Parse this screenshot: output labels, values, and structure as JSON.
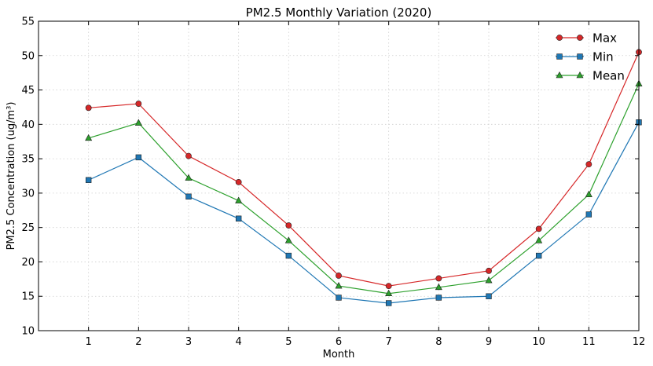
{
  "chart_data": {
    "type": "line",
    "title": "PM2.5 Monthly Variation (2020)",
    "xlabel": "Month",
    "ylabel": "PM2.5 Concentration (ug/m³)",
    "x": [
      1,
      2,
      3,
      4,
      5,
      6,
      7,
      8,
      9,
      10,
      11,
      12
    ],
    "xlim": [
      0,
      12
    ],
    "ylim": [
      10,
      55
    ],
    "yticks": [
      10,
      15,
      20,
      25,
      30,
      35,
      40,
      45,
      50,
      55
    ],
    "grid": true,
    "legend_position": "top-right",
    "series": [
      {
        "name": "Max",
        "color": "#d62728",
        "marker": "circle",
        "values": [
          42.4,
          43.0,
          35.4,
          31.6,
          25.3,
          18.0,
          16.5,
          17.6,
          18.7,
          24.8,
          34.2,
          50.5
        ]
      },
      {
        "name": "Min",
        "color": "#1f77b4",
        "marker": "square",
        "values": [
          31.9,
          35.2,
          29.5,
          26.3,
          20.9,
          14.8,
          14.0,
          14.8,
          15.0,
          20.9,
          26.9,
          40.3
        ]
      },
      {
        "name": "Mean",
        "color": "#2ca02c",
        "marker": "triangle",
        "values": [
          38.0,
          40.2,
          32.2,
          28.9,
          23.1,
          16.5,
          15.4,
          16.3,
          17.3,
          23.1,
          29.8,
          45.9
        ]
      }
    ]
  }
}
